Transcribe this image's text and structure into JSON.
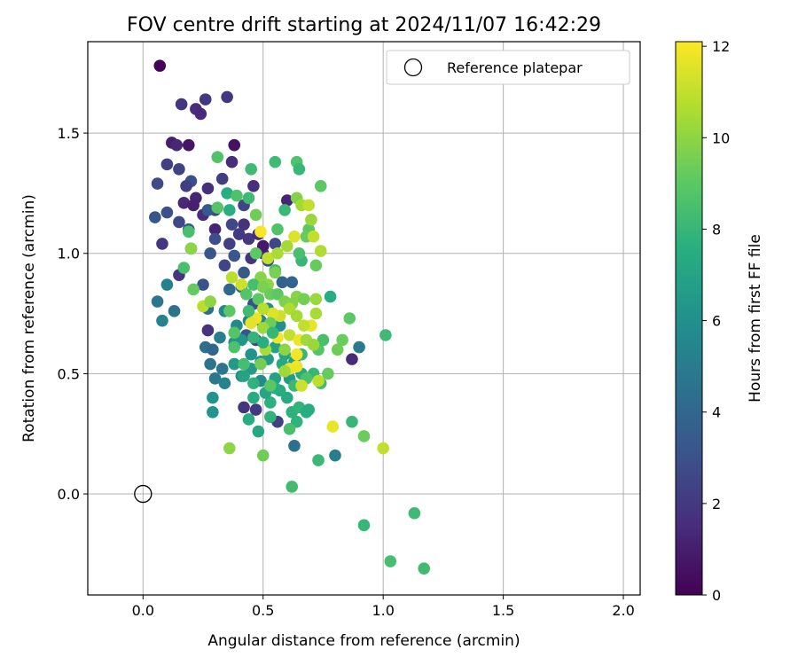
{
  "chart_data": {
    "type": "scatter",
    "title": "FOV centre drift starting at 2024/11/07 16:42:29",
    "xlabel": "Angular distance from reference (arcmin)",
    "ylabel": "Rotation from reference (arcmin)",
    "xlim": [
      -0.23,
      2.07
    ],
    "ylim": [
      -0.42,
      1.88
    ],
    "xticks": [
      "0.0",
      "0.5",
      "1.0",
      "1.5",
      "2.0"
    ],
    "yticks": [
      "0.0",
      "0.5",
      "1.0",
      "1.5"
    ],
    "grid": true,
    "legend": {
      "placement": "top-right",
      "entries": [
        "Reference platepar"
      ]
    },
    "reference_point": {
      "x": 0.0,
      "y": 0.0
    },
    "colorbar": {
      "label": "Hours from first FF file",
      "min": 0,
      "max": 12.1,
      "ticks": [
        "0",
        "2",
        "4",
        "6",
        "8",
        "10",
        "12"
      ],
      "colormap": "viridis"
    },
    "points": [
      {
        "x": 0.07,
        "y": 1.78,
        "h": 0.1
      },
      {
        "x": 0.16,
        "y": 1.62,
        "h": 1.8
      },
      {
        "x": 0.26,
        "y": 1.64,
        "h": 2.0
      },
      {
        "x": 0.35,
        "y": 1.65,
        "h": 1.9
      },
      {
        "x": 0.22,
        "y": 1.6,
        "h": 1.5
      },
      {
        "x": 0.24,
        "y": 1.58,
        "h": 1.4
      },
      {
        "x": 0.12,
        "y": 1.46,
        "h": 1.0
      },
      {
        "x": 0.14,
        "y": 1.45,
        "h": 1.3
      },
      {
        "x": 0.19,
        "y": 1.45,
        "h": 0.7
      },
      {
        "x": 0.38,
        "y": 1.45,
        "h": 0.6
      },
      {
        "x": 0.1,
        "y": 1.37,
        "h": 2.3
      },
      {
        "x": 0.15,
        "y": 1.35,
        "h": 2.4
      },
      {
        "x": 0.37,
        "y": 1.38,
        "h": 1.5
      },
      {
        "x": 0.33,
        "y": 1.31,
        "h": 2.2
      },
      {
        "x": 0.2,
        "y": 1.3,
        "h": 3.0
      },
      {
        "x": 0.18,
        "y": 1.28,
        "h": 2.2
      },
      {
        "x": 0.06,
        "y": 1.29,
        "h": 2.8
      },
      {
        "x": 0.27,
        "y": 1.27,
        "h": 1.6
      },
      {
        "x": 0.22,
        "y": 1.23,
        "h": 1.2
      },
      {
        "x": 0.17,
        "y": 1.21,
        "h": 1.4
      },
      {
        "x": 0.21,
        "y": 1.2,
        "h": 1.1
      },
      {
        "x": 0.25,
        "y": 1.16,
        "h": 1.5
      },
      {
        "x": 0.3,
        "y": 1.18,
        "h": 2.5
      },
      {
        "x": 0.05,
        "y": 1.15,
        "h": 3.2
      },
      {
        "x": 0.1,
        "y": 1.17,
        "h": 3.0
      },
      {
        "x": 0.37,
        "y": 1.12,
        "h": 2.6
      },
      {
        "x": 0.42,
        "y": 1.12,
        "h": 1.7
      },
      {
        "x": 0.3,
        "y": 1.1,
        "h": 1.2
      },
      {
        "x": 0.19,
        "y": 1.1,
        "h": 3.5
      },
      {
        "x": 0.4,
        "y": 1.08,
        "h": 2.0
      },
      {
        "x": 0.44,
        "y": 1.06,
        "h": 1.9
      },
      {
        "x": 0.08,
        "y": 1.04,
        "h": 1.9
      },
      {
        "x": 0.2,
        "y": 1.02,
        "h": 2.0
      },
      {
        "x": 0.28,
        "y": 1.0,
        "h": 3.2
      },
      {
        "x": 0.38,
        "y": 0.99,
        "h": 3.3
      },
      {
        "x": 0.45,
        "y": 0.98,
        "h": 1.8
      },
      {
        "x": 0.34,
        "y": 0.95,
        "h": 2.5
      },
      {
        "x": 0.15,
        "y": 0.91,
        "h": 1.8
      },
      {
        "x": 0.5,
        "y": 1.0,
        "h": 2.0
      },
      {
        "x": 0.55,
        "y": 1.04,
        "h": 2.6
      },
      {
        "x": 0.52,
        "y": 0.97,
        "h": 3.0
      },
      {
        "x": 0.25,
        "y": 0.87,
        "h": 3.0
      },
      {
        "x": 0.1,
        "y": 0.87,
        "h": 5.2
      },
      {
        "x": 0.13,
        "y": 0.76,
        "h": 4.6
      },
      {
        "x": 0.06,
        "y": 0.8,
        "h": 4.7
      },
      {
        "x": 0.08,
        "y": 0.72,
        "h": 5.3
      },
      {
        "x": 0.42,
        "y": 1.2,
        "h": 2.4
      },
      {
        "x": 0.46,
        "y": 1.28,
        "h": 1.6
      },
      {
        "x": 0.3,
        "y": 1.06,
        "h": 2.9
      },
      {
        "x": 0.27,
        "y": 1.18,
        "h": 3.4
      },
      {
        "x": 0.15,
        "y": 1.13,
        "h": 2.6
      },
      {
        "x": 0.36,
        "y": 1.04,
        "h": 2.3
      },
      {
        "x": 0.48,
        "y": 1.08,
        "h": 1.5
      },
      {
        "x": 0.42,
        "y": 0.92,
        "h": 3.3
      },
      {
        "x": 0.6,
        "y": 1.22,
        "h": 1.2
      },
      {
        "x": 0.5,
        "y": 1.03,
        "h": 0.8
      },
      {
        "x": 0.58,
        "y": 0.88,
        "h": 3.8
      },
      {
        "x": 0.62,
        "y": 0.88,
        "h": 3.9
      },
      {
        "x": 0.46,
        "y": 0.79,
        "h": 3.0
      },
      {
        "x": 0.43,
        "y": 0.66,
        "h": 3.2
      },
      {
        "x": 0.47,
        "y": 0.64,
        "h": 2.4
      },
      {
        "x": 0.87,
        "y": 0.56,
        "h": 1.4
      },
      {
        "x": 0.47,
        "y": 0.35,
        "h": 2.0
      },
      {
        "x": 0.42,
        "y": 0.36,
        "h": 1.8
      },
      {
        "x": 0.56,
        "y": 0.3,
        "h": 2.2
      },
      {
        "x": 0.63,
        "y": 0.2,
        "h": 4.5
      },
      {
        "x": 0.8,
        "y": 0.16,
        "h": 5.1
      },
      {
        "x": 0.9,
        "y": 0.61,
        "h": 5.0
      },
      {
        "x": 0.27,
        "y": 0.68,
        "h": 1.7
      },
      {
        "x": 0.26,
        "y": 0.61,
        "h": 4.4
      },
      {
        "x": 0.29,
        "y": 0.6,
        "h": 4.0
      },
      {
        "x": 0.28,
        "y": 0.54,
        "h": 4.6
      },
      {
        "x": 0.3,
        "y": 0.48,
        "h": 4.8
      },
      {
        "x": 0.33,
        "y": 0.52,
        "h": 4.7
      },
      {
        "x": 0.32,
        "y": 0.65,
        "h": 5.1
      },
      {
        "x": 0.34,
        "y": 0.76,
        "h": 5.5
      },
      {
        "x": 0.39,
        "y": 0.7,
        "h": 5.6
      },
      {
        "x": 0.27,
        "y": 0.77,
        "h": 4.4
      },
      {
        "x": 0.36,
        "y": 0.85,
        "h": 4.1
      },
      {
        "x": 0.41,
        "y": 0.86,
        "h": 4.5
      },
      {
        "x": 0.44,
        "y": 0.72,
        "h": 5.2
      },
      {
        "x": 0.49,
        "y": 0.72,
        "h": 5.4
      },
      {
        "x": 0.52,
        "y": 0.77,
        "h": 5.9
      },
      {
        "x": 0.57,
        "y": 0.7,
        "h": 6.0
      },
      {
        "x": 0.38,
        "y": 0.63,
        "h": 6.2
      },
      {
        "x": 0.41,
        "y": 0.64,
        "h": 6.3
      },
      {
        "x": 0.45,
        "y": 0.58,
        "h": 6.1
      },
      {
        "x": 0.49,
        "y": 0.55,
        "h": 6.2
      },
      {
        "x": 0.45,
        "y": 0.52,
        "h": 6.5
      },
      {
        "x": 0.49,
        "y": 0.47,
        "h": 5.7
      },
      {
        "x": 0.41,
        "y": 0.49,
        "h": 5.9
      },
      {
        "x": 0.34,
        "y": 0.46,
        "h": 5.3
      },
      {
        "x": 0.29,
        "y": 0.4,
        "h": 6.1
      },
      {
        "x": 0.29,
        "y": 0.34,
        "h": 6.2
      },
      {
        "x": 0.38,
        "y": 0.54,
        "h": 6.5
      },
      {
        "x": 0.52,
        "y": 0.56,
        "h": 6.7
      },
      {
        "x": 0.55,
        "y": 0.61,
        "h": 6.9
      },
      {
        "x": 0.59,
        "y": 0.58,
        "h": 7.0
      },
      {
        "x": 0.55,
        "y": 0.48,
        "h": 6.9
      },
      {
        "x": 0.61,
        "y": 0.48,
        "h": 6.5
      },
      {
        "x": 0.57,
        "y": 0.43,
        "h": 7.4
      },
      {
        "x": 0.55,
        "y": 0.44,
        "h": 7.5
      },
      {
        "x": 0.46,
        "y": 0.4,
        "h": 7.4
      },
      {
        "x": 0.53,
        "y": 0.38,
        "h": 7.7
      },
      {
        "x": 0.53,
        "y": 0.32,
        "h": 7.8
      },
      {
        "x": 0.6,
        "y": 0.4,
        "h": 7.3
      },
      {
        "x": 0.62,
        "y": 0.34,
        "h": 7.7
      },
      {
        "x": 0.65,
        "y": 0.36,
        "h": 7.9
      },
      {
        "x": 0.68,
        "y": 0.34,
        "h": 7.6
      },
      {
        "x": 0.64,
        "y": 0.3,
        "h": 7.8
      },
      {
        "x": 0.69,
        "y": 0.35,
        "h": 7.5
      },
      {
        "x": 0.44,
        "y": 0.31,
        "h": 7.5
      },
      {
        "x": 0.48,
        "y": 0.26,
        "h": 7.2
      },
      {
        "x": 0.61,
        "y": 0.27,
        "h": 8.5
      },
      {
        "x": 0.42,
        "y": 0.49,
        "h": 7.0
      },
      {
        "x": 0.51,
        "y": 0.42,
        "h": 7.1
      },
      {
        "x": 0.58,
        "y": 0.54,
        "h": 7.3
      },
      {
        "x": 0.63,
        "y": 0.55,
        "h": 6.7
      },
      {
        "x": 0.66,
        "y": 0.5,
        "h": 7.4
      },
      {
        "x": 0.71,
        "y": 0.5,
        "h": 8.0
      },
      {
        "x": 0.66,
        "y": 0.58,
        "h": 8.0
      },
      {
        "x": 0.63,
        "y": 0.45,
        "h": 8.1
      },
      {
        "x": 0.68,
        "y": 0.48,
        "h": 8.6
      },
      {
        "x": 0.77,
        "y": 0.5,
        "h": 9.2
      },
      {
        "x": 0.74,
        "y": 0.46,
        "h": 8.3
      },
      {
        "x": 0.73,
        "y": 0.6,
        "h": 8.8
      },
      {
        "x": 0.75,
        "y": 0.64,
        "h": 8.5
      },
      {
        "x": 0.81,
        "y": 0.6,
        "h": 9.4
      },
      {
        "x": 0.83,
        "y": 0.64,
        "h": 9.3
      },
      {
        "x": 0.86,
        "y": 0.73,
        "h": 9.0
      },
      {
        "x": 0.87,
        "y": 0.3,
        "h": 8.0
      },
      {
        "x": 0.92,
        "y": 0.24,
        "h": 9.3
      },
      {
        "x": 1.0,
        "y": 0.19,
        "h": 11.0
      },
      {
        "x": 1.01,
        "y": 0.66,
        "h": 8.2
      },
      {
        "x": 0.36,
        "y": 0.19,
        "h": 10.0
      },
      {
        "x": 0.5,
        "y": 0.16,
        "h": 9.4
      },
      {
        "x": 0.73,
        "y": 0.14,
        "h": 8.1
      },
      {
        "x": 0.62,
        "y": 0.03,
        "h": 8.3
      },
      {
        "x": 0.92,
        "y": -0.13,
        "h": 8.0
      },
      {
        "x": 1.13,
        "y": -0.08,
        "h": 8.2
      },
      {
        "x": 1.03,
        "y": -0.28,
        "h": 8.4
      },
      {
        "x": 1.17,
        "y": -0.31,
        "h": 8.3
      },
      {
        "x": 0.78,
        "y": 0.82,
        "h": 7.5
      },
      {
        "x": 0.66,
        "y": 0.97,
        "h": 8.0
      },
      {
        "x": 0.74,
        "y": 1.28,
        "h": 9.0
      },
      {
        "x": 0.55,
        "y": 1.38,
        "h": 8.2
      },
      {
        "x": 0.64,
        "y": 1.38,
        "h": 8.6
      },
      {
        "x": 0.65,
        "y": 1.35,
        "h": 8.0
      },
      {
        "x": 0.45,
        "y": 1.35,
        "h": 8.2
      },
      {
        "x": 0.31,
        "y": 1.4,
        "h": 8.7
      },
      {
        "x": 0.59,
        "y": 1.18,
        "h": 8.1
      },
      {
        "x": 0.35,
        "y": 1.25,
        "h": 7.5
      },
      {
        "x": 0.39,
        "y": 1.24,
        "h": 8.6
      },
      {
        "x": 0.44,
        "y": 1.23,
        "h": 8.2
      },
      {
        "x": 0.36,
        "y": 1.18,
        "h": 7.6
      },
      {
        "x": 0.31,
        "y": 1.19,
        "h": 8.8
      },
      {
        "x": 0.47,
        "y": 1.16,
        "h": 9.4
      },
      {
        "x": 0.56,
        "y": 1.1,
        "h": 8.7
      },
      {
        "x": 0.69,
        "y": 1.1,
        "h": 9.0
      },
      {
        "x": 0.47,
        "y": 1.0,
        "h": 9.0
      },
      {
        "x": 0.55,
        "y": 0.93,
        "h": 8.3
      },
      {
        "x": 0.65,
        "y": 1.0,
        "h": 8.5
      },
      {
        "x": 0.74,
        "y": 1.01,
        "h": 10.6
      },
      {
        "x": 0.68,
        "y": 1.07,
        "h": 9.2
      },
      {
        "x": 0.7,
        "y": 1.14,
        "h": 10.2
      },
      {
        "x": 0.71,
        "y": 1.07,
        "h": 11.0
      },
      {
        "x": 0.64,
        "y": 1.23,
        "h": 9.8
      },
      {
        "x": 0.66,
        "y": 1.2,
        "h": 10.4
      },
      {
        "x": 0.69,
        "y": 1.2,
        "h": 11.0
      },
      {
        "x": 0.72,
        "y": 0.95,
        "h": 9.2
      },
      {
        "x": 0.52,
        "y": 0.98,
        "h": 11.0
      },
      {
        "x": 0.56,
        "y": 1.0,
        "h": 10.5
      },
      {
        "x": 0.6,
        "y": 1.03,
        "h": 10.4
      },
      {
        "x": 0.63,
        "y": 1.07,
        "h": 11.5
      },
      {
        "x": 0.49,
        "y": 1.09,
        "h": 12.0
      },
      {
        "x": 0.55,
        "y": 0.92,
        "h": 9.6
      },
      {
        "x": 0.49,
        "y": 0.9,
        "h": 9.9
      },
      {
        "x": 0.52,
        "y": 0.87,
        "h": 10.0
      },
      {
        "x": 0.46,
        "y": 0.87,
        "h": 8.4
      },
      {
        "x": 0.37,
        "y": 0.9,
        "h": 10.8
      },
      {
        "x": 0.41,
        "y": 0.87,
        "h": 11.2
      },
      {
        "x": 0.43,
        "y": 0.83,
        "h": 8.8
      },
      {
        "x": 0.48,
        "y": 0.81,
        "h": 9.0
      },
      {
        "x": 0.5,
        "y": 0.86,
        "h": 9.6
      },
      {
        "x": 0.53,
        "y": 0.83,
        "h": 9.3
      },
      {
        "x": 0.56,
        "y": 0.83,
        "h": 9.0
      },
      {
        "x": 0.59,
        "y": 0.8,
        "h": 9.7
      },
      {
        "x": 0.64,
        "y": 0.82,
        "h": 9.9
      },
      {
        "x": 0.67,
        "y": 0.81,
        "h": 9.5
      },
      {
        "x": 0.62,
        "y": 0.79,
        "h": 9.8
      },
      {
        "x": 0.61,
        "y": 0.77,
        "h": 10.6
      },
      {
        "x": 0.57,
        "y": 0.74,
        "h": 11.2
      },
      {
        "x": 0.54,
        "y": 0.75,
        "h": 11.5
      },
      {
        "x": 0.5,
        "y": 0.77,
        "h": 10.8
      },
      {
        "x": 0.47,
        "y": 0.73,
        "h": 11.8
      },
      {
        "x": 0.45,
        "y": 0.71,
        "h": 11.6
      },
      {
        "x": 0.53,
        "y": 0.71,
        "h": 9.3
      },
      {
        "x": 0.5,
        "y": 0.69,
        "h": 10.3
      },
      {
        "x": 0.56,
        "y": 0.65,
        "h": 11.9
      },
      {
        "x": 0.61,
        "y": 0.66,
        "h": 11.0
      },
      {
        "x": 0.65,
        "y": 0.64,
        "h": 11.8
      },
      {
        "x": 0.68,
        "y": 0.64,
        "h": 10.3
      },
      {
        "x": 0.7,
        "y": 0.7,
        "h": 11.7
      },
      {
        "x": 0.72,
        "y": 0.75,
        "h": 10.5
      },
      {
        "x": 0.72,
        "y": 0.81,
        "h": 10.2
      },
      {
        "x": 0.64,
        "y": 0.74,
        "h": 10.4
      },
      {
        "x": 0.67,
        "y": 0.7,
        "h": 11.0
      },
      {
        "x": 0.59,
        "y": 0.6,
        "h": 10.0
      },
      {
        "x": 0.51,
        "y": 0.6,
        "h": 10.5
      },
      {
        "x": 0.64,
        "y": 0.58,
        "h": 11.9
      },
      {
        "x": 0.64,
        "y": 0.53,
        "h": 11.8
      },
      {
        "x": 0.61,
        "y": 0.52,
        "h": 11.7
      },
      {
        "x": 0.59,
        "y": 0.51,
        "h": 10.3
      },
      {
        "x": 0.71,
        "y": 0.62,
        "h": 10.2
      },
      {
        "x": 0.66,
        "y": 0.45,
        "h": 11.2
      },
      {
        "x": 0.73,
        "y": 0.47,
        "h": 10.9
      },
      {
        "x": 0.79,
        "y": 0.28,
        "h": 11.7
      },
      {
        "x": 0.25,
        "y": 0.78,
        "h": 10.8
      },
      {
        "x": 0.21,
        "y": 0.85,
        "h": 9.2
      },
      {
        "x": 0.17,
        "y": 0.94,
        "h": 8.5
      },
      {
        "x": 0.2,
        "y": 1.02,
        "h": 10.0
      },
      {
        "x": 0.19,
        "y": 1.09,
        "h": 8.5
      },
      {
        "x": 0.36,
        "y": 0.76,
        "h": 9.0
      },
      {
        "x": 0.28,
        "y": 0.8,
        "h": 10.0
      },
      {
        "x": 0.38,
        "y": 0.61,
        "h": 8.6
      },
      {
        "x": 0.49,
        "y": 0.54,
        "h": 9.5
      },
      {
        "x": 0.5,
        "y": 0.63,
        "h": 7.5
      },
      {
        "x": 0.54,
        "y": 0.67,
        "h": 8.0
      },
      {
        "x": 0.42,
        "y": 0.54,
        "h": 8.4
      },
      {
        "x": 0.38,
        "y": 0.67,
        "h": 8.8
      },
      {
        "x": 0.46,
        "y": 0.65,
        "h": 7.9
      },
      {
        "x": 0.44,
        "y": 0.76,
        "h": 8.3
      },
      {
        "x": 0.46,
        "y": 0.46,
        "h": 7.8
      },
      {
        "x": 0.53,
        "y": 0.45,
        "h": 8.9
      }
    ]
  }
}
